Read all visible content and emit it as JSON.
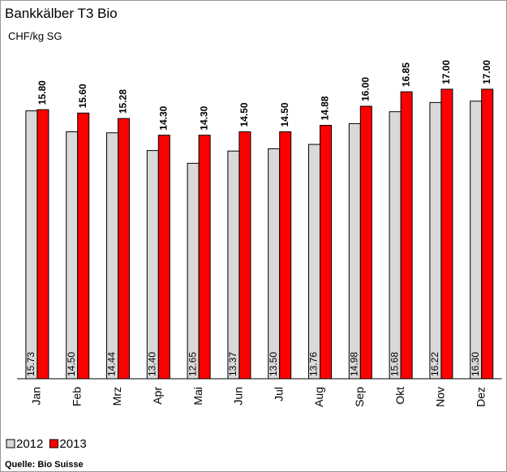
{
  "chart_data": {
    "type": "bar",
    "title": "Bankkälber T3 Bio",
    "subtitle": "CHF/kg SG",
    "source": "Quelle: Bio Suisse",
    "categories": [
      "Jan",
      "Feb",
      "Mrz",
      "Apr",
      "Mai",
      "Jun",
      "Jul",
      "Aug",
      "Sep",
      "Okt",
      "Nov",
      "Dez"
    ],
    "series": [
      {
        "name": "2012",
        "color": "#d9d9d9",
        "values": [
          15.73,
          14.5,
          14.44,
          13.4,
          12.65,
          13.37,
          13.5,
          13.76,
          14.98,
          15.68,
          16.22,
          16.3
        ],
        "value_labels": [
          "15.73",
          "14.50",
          "14.44",
          "13.40",
          "12.65",
          "13.37",
          "13.50",
          "13.76",
          "14.98",
          "15.68",
          "16.22",
          "16.30"
        ]
      },
      {
        "name": "2013",
        "color": "#ff0000",
        "values": [
          15.8,
          15.6,
          15.28,
          14.3,
          14.3,
          14.5,
          14.5,
          14.88,
          16,
          16.85,
          17,
          17
        ],
        "value_labels": [
          "15.80",
          "15.60",
          "15.28",
          "14.30",
          "14.30",
          "14.50",
          "14.50",
          "14.88",
          "16.00",
          "16.85",
          "17.00",
          "17.00"
        ]
      }
    ],
    "ylim": [
      0,
      20
    ]
  }
}
